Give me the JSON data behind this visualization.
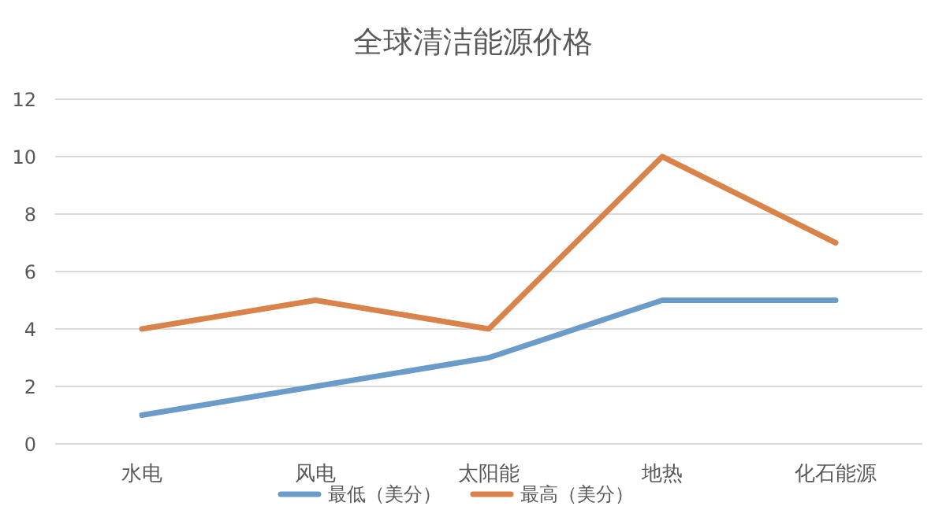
{
  "chart_data": {
    "type": "line",
    "title": "全球清洁能源价格",
    "categories": [
      "水电",
      "风电",
      "太阳能",
      "地热",
      "化石能源"
    ],
    "series": [
      {
        "name": "最低（美分）",
        "color": "#6b9bc8",
        "values": [
          1,
          2,
          3,
          5,
          5
        ]
      },
      {
        "name": "最高（美分）",
        "color": "#d9824a",
        "values": [
          4,
          5,
          4,
          10,
          7
        ]
      }
    ],
    "ylim": [
      0,
      12
    ],
    "yticks": [
      0,
      2,
      4,
      6,
      8,
      10,
      12
    ],
    "grid": "y",
    "legend": "bottom"
  }
}
